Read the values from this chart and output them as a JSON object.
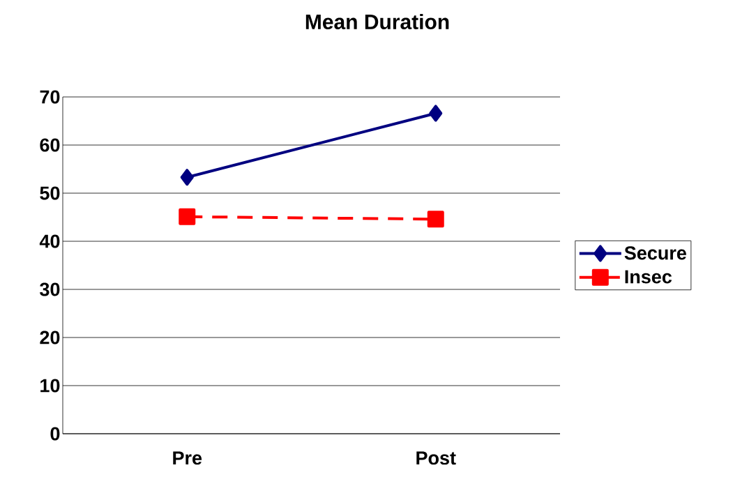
{
  "chart_data": {
    "type": "line",
    "title": "Mean Duration",
    "categories": [
      "Pre",
      "Post"
    ],
    "series": [
      {
        "name": "Secure",
        "color": "#000080",
        "values": [
          53.3,
          66.6
        ],
        "marker": "diamond",
        "line_style": "solid"
      },
      {
        "name": "Insec",
        "color": "#ff0000",
        "values": [
          45.1,
          44.6
        ],
        "marker": "square",
        "line_style": "dashed"
      }
    ],
    "ylim": [
      0,
      70
    ],
    "yticks": [
      0,
      10,
      20,
      30,
      40,
      50,
      60,
      70
    ],
    "grid": "y",
    "legend": "right"
  }
}
